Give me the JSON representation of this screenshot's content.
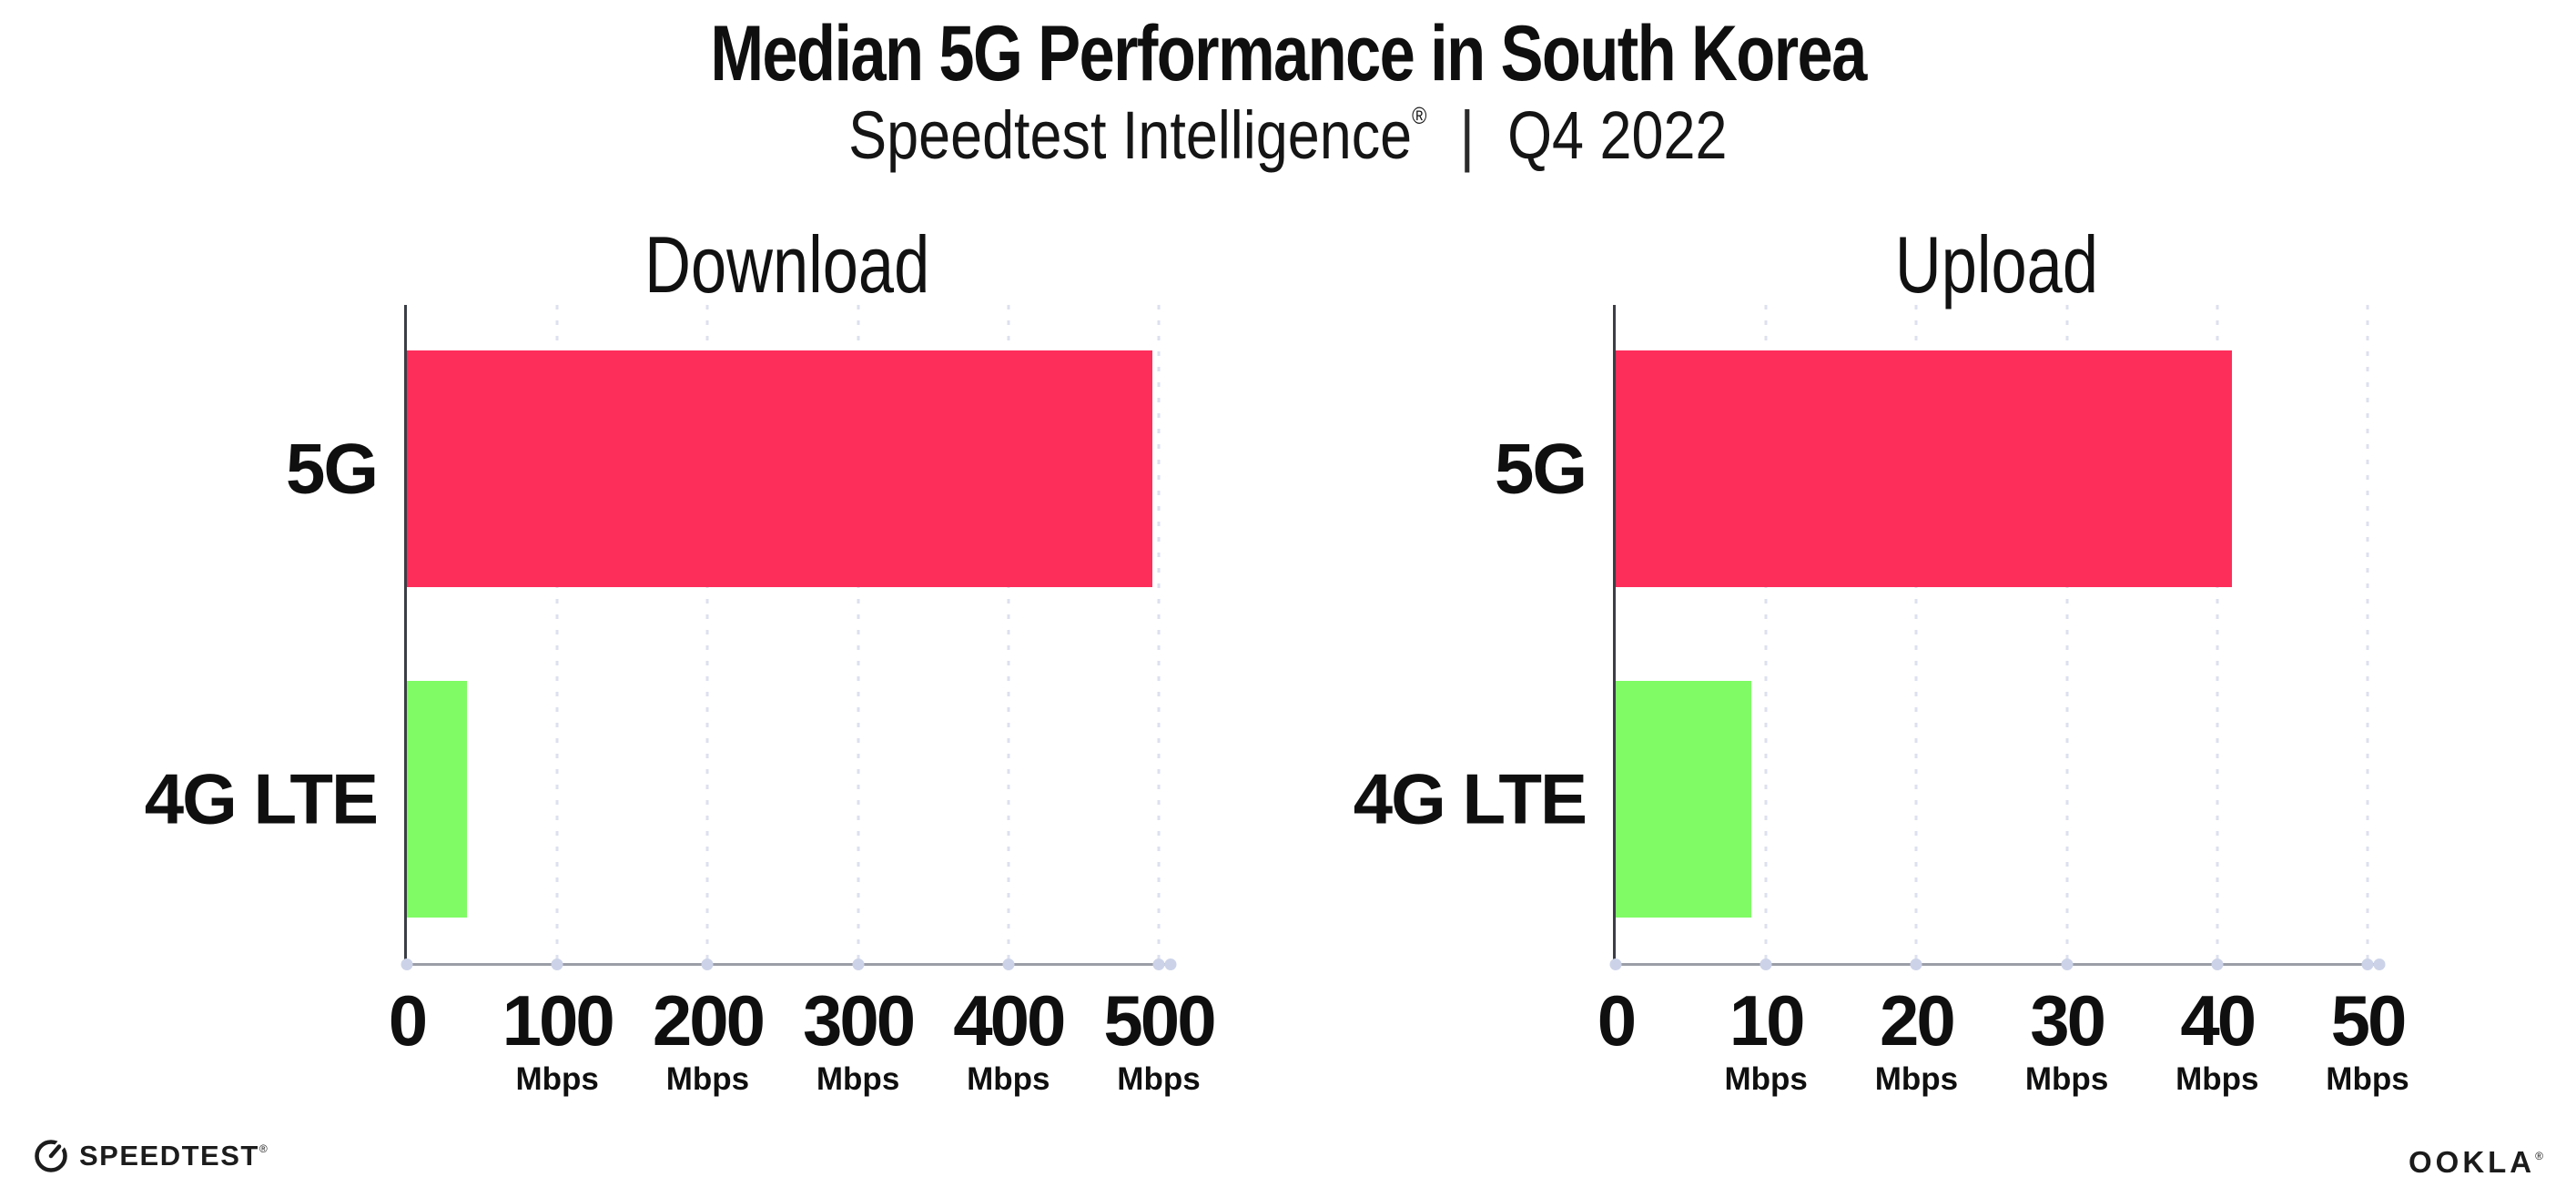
{
  "header": {
    "title": "Median 5G Performance in South Korea",
    "subtitle_brand": "Speedtest Intelligence",
    "subtitle_brand_mark": "®",
    "subtitle_divider": "|",
    "subtitle_period": "Q4 2022"
  },
  "chart_data": [
    {
      "type": "bar",
      "orientation": "horizontal",
      "title": "Download",
      "categories": [
        "5G",
        "4G LTE"
      ],
      "values": [
        496,
        40
      ],
      "unit": "Mbps",
      "ticks": [
        0,
        100,
        200,
        300,
        400,
        500
      ],
      "tick_unit": "Mbps",
      "xlim": [
        0,
        500
      ],
      "grid": "dotted-vertical",
      "legend": "none",
      "bar_colors": [
        "#fd2e5a",
        "#80fb66"
      ]
    },
    {
      "type": "bar",
      "orientation": "horizontal",
      "title": "Upload",
      "categories": [
        "5G",
        "4G LTE"
      ],
      "values": [
        41,
        9
      ],
      "unit": "Mbps",
      "ticks": [
        0,
        10,
        20,
        30,
        40,
        50
      ],
      "tick_unit": "Mbps",
      "xlim": [
        0,
        50
      ],
      "grid": "dotted-vertical",
      "legend": "none",
      "bar_colors": [
        "#fd2e5a",
        "#80fb66"
      ]
    }
  ],
  "colors": {
    "bar_5g": "#fd2e5a",
    "bar_4g": "#80fb66",
    "gridline": "#dde0ee",
    "tick_dot": "#ccd3e9",
    "y_axis": "#3b3e46",
    "x_axis": "#9b9ea6",
    "text": "#0f0f10"
  },
  "footer": {
    "speedtest_label": "SPEEDTEST",
    "speedtest_mark": "®",
    "ookla_label": "OOKLA",
    "ookla_mark": "®"
  }
}
